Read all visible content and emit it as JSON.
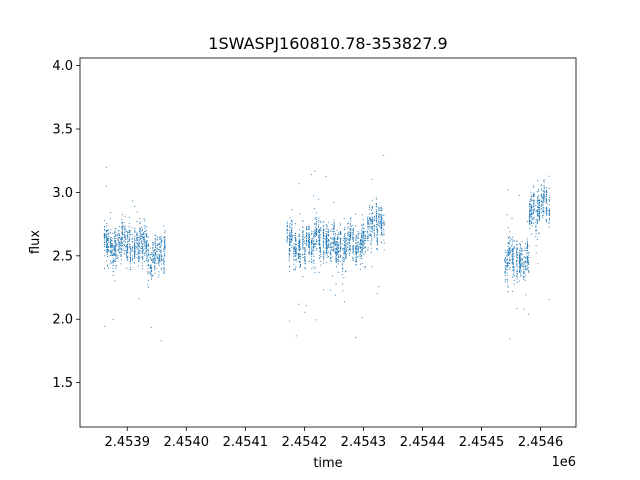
{
  "chart_data": {
    "type": "scatter",
    "title": "1SWASPJ160810.78-353827.9",
    "xlabel": "time",
    "ylabel": "flux",
    "x_offset_label": "1e6",
    "xlim": [
      2453820,
      2454660
    ],
    "ylim": [
      1.15,
      4.06
    ],
    "x_ticks": [
      2453900,
      2454000,
      2454100,
      2454200,
      2454300,
      2454400,
      2454500,
      2454600
    ],
    "x_tick_labels": [
      "2.4539",
      "2.4540",
      "2.4541",
      "2.4542",
      "2.4543",
      "2.4544",
      "2.4545",
      "2.4546"
    ],
    "y_ticks": [
      1.5,
      2.0,
      2.5,
      3.0,
      3.5,
      4.0
    ],
    "y_tick_labels": [
      "1.5",
      "2.0",
      "2.5",
      "3.0",
      "3.5",
      "4.0"
    ],
    "point_color": "#1f77b4",
    "series": [
      {
        "observing_seasons": [
          {
            "x_range": [
              2453860,
              2453935
            ],
            "median_flux": 2.6
          },
          {
            "x_range": [
              2453935,
              2453965
            ],
            "median_flux": 2.5
          },
          {
            "x_range": [
              2454170,
              2454255
            ],
            "median_flux": 2.6
          },
          {
            "x_range": [
              2454255,
              2454305
            ],
            "median_flux": 2.6
          },
          {
            "x_range": [
              2454305,
              2454335
            ],
            "median_flux": 2.75
          },
          {
            "x_range": [
              2454540,
              2454580
            ],
            "median_flux": 2.45
          },
          {
            "x_range": [
              2454580,
              2454615
            ],
            "median_flux": 2.9
          }
        ]
      }
    ]
  }
}
